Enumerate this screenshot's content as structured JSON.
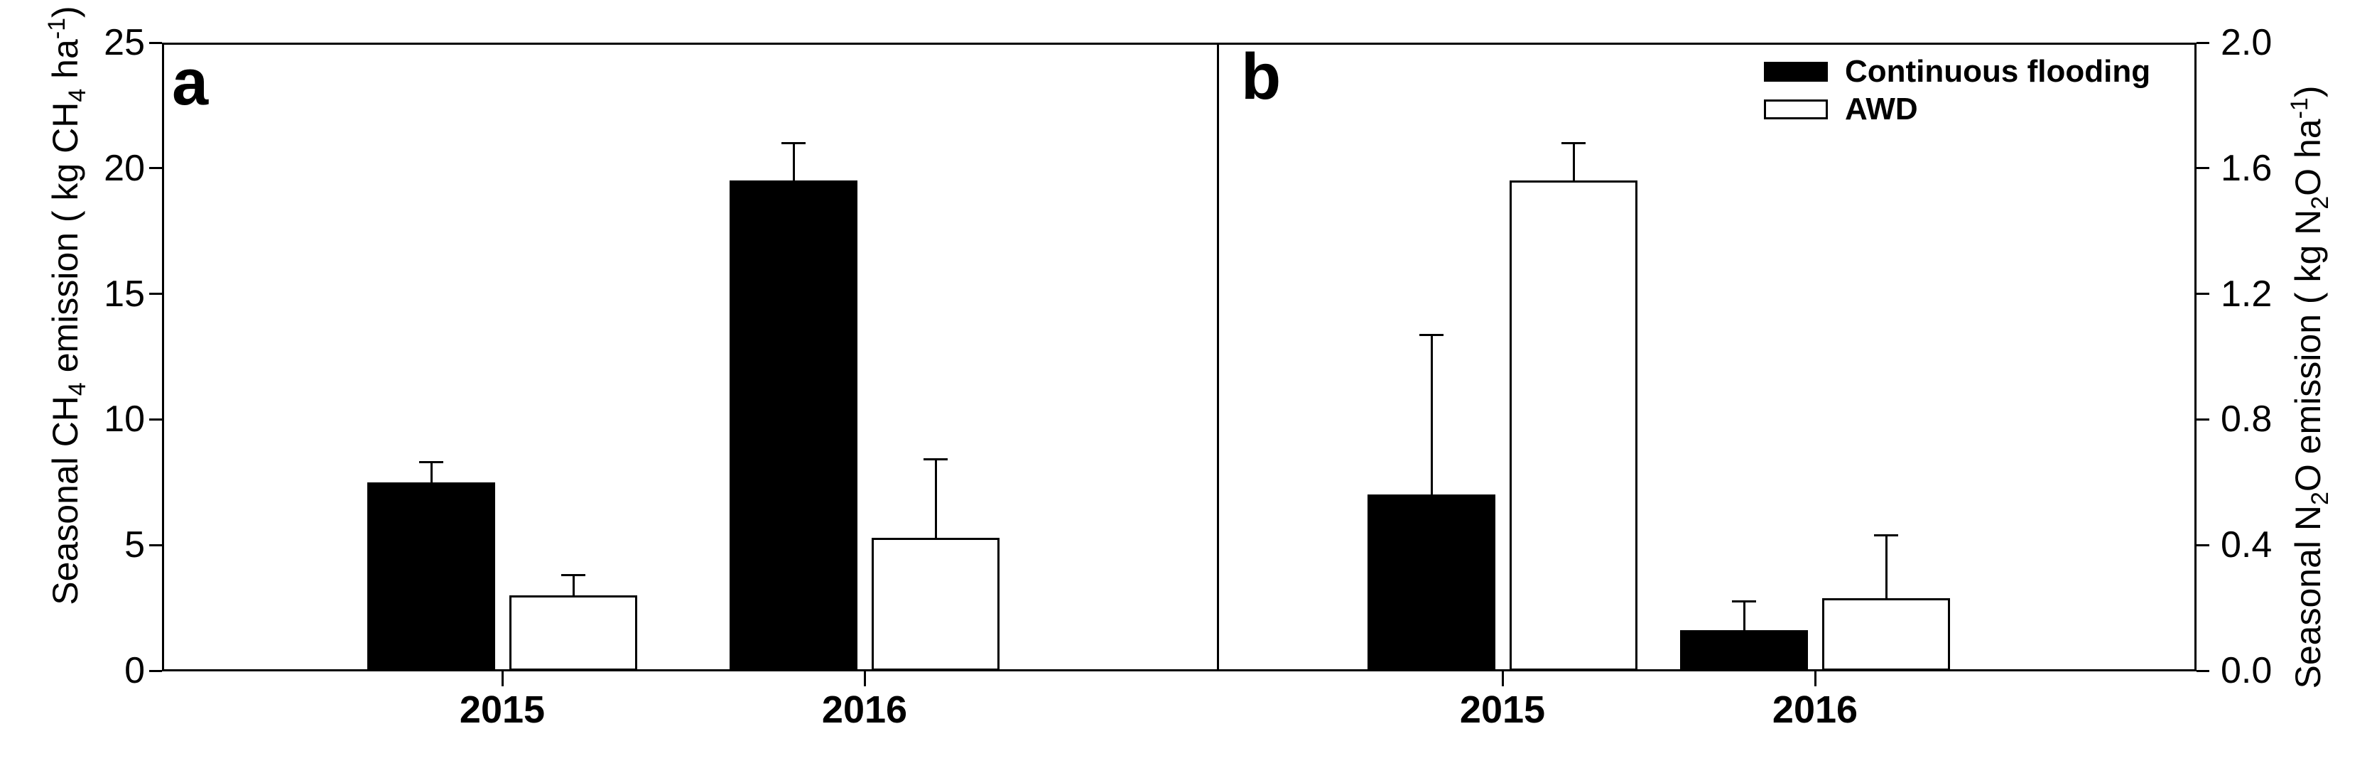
{
  "figure_title": "",
  "legend": {
    "position": "top-right",
    "items": [
      {
        "label": "Continuous flooding",
        "fill": "#000000"
      },
      {
        "label": "AWD",
        "fill": "#ffffff"
      }
    ]
  },
  "colors": {
    "foreground": "#000000",
    "background": "#ffffff"
  },
  "chart_data": [
    {
      "type": "bar",
      "panel": "a",
      "ylabel": "Seasonal CH_4_ emission ( kg CH_4_ ha^-1^)",
      "xlabel": "",
      "categories": [
        "2015",
        "2016"
      ],
      "series": [
        {
          "name": "Continuous flooding",
          "fill": "#000000",
          "values": [
            7.5,
            19.5
          ],
          "errors": [
            0.8,
            1.5
          ]
        },
        {
          "name": "AWD",
          "fill": "#ffffff",
          "values": [
            3.0,
            5.3
          ],
          "errors": [
            0.8,
            3.1
          ]
        }
      ],
      "ylim": [
        0,
        25
      ],
      "yticks": [
        0,
        5,
        10,
        15,
        20,
        25
      ],
      "ytick_labels": [
        "0",
        "5",
        "10",
        "15",
        "20",
        "25"
      ],
      "axis_side": "left",
      "grid": false,
      "error_bars": "upper"
    },
    {
      "type": "bar",
      "panel": "b",
      "ylabel": "Seasonal N_2_O emission ( kg N_2_O ha^-1^)",
      "xlabel": "",
      "categories": [
        "2015",
        "2016"
      ],
      "series": [
        {
          "name": "Continuous flooding",
          "fill": "#000000",
          "values": [
            0.56,
            0.13
          ],
          "errors": [
            0.51,
            0.09
          ]
        },
        {
          "name": "AWD",
          "fill": "#ffffff",
          "values": [
            1.56,
            0.23
          ],
          "errors": [
            0.12,
            0.2
          ]
        }
      ],
      "ylim": [
        0,
        2.0
      ],
      "yticks": [
        0,
        0.4,
        0.8,
        1.2,
        1.6,
        2.0
      ],
      "ytick_labels": [
        "0.0",
        "0.4",
        "0.8",
        "1.2",
        "1.6",
        "2.0"
      ],
      "axis_side": "right",
      "grid": false,
      "error_bars": "upper"
    }
  ]
}
